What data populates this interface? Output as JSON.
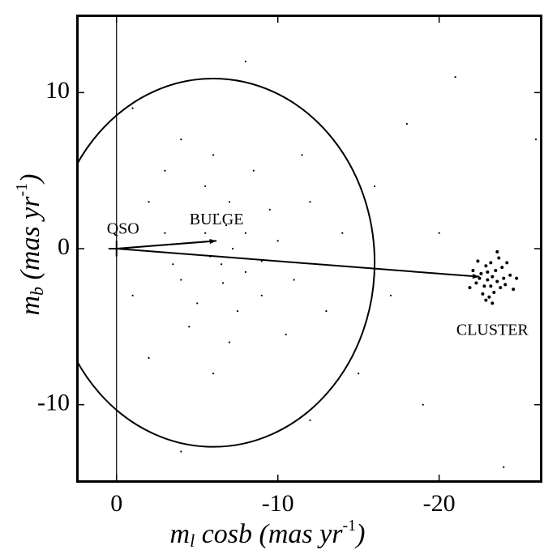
{
  "chart_data": {
    "type": "scatter",
    "xlabel": [
      "m",
      "l",
      " cosb (mas yr",
      "-1",
      ")"
    ],
    "ylabel": [
      "m",
      "b",
      " (mas yr",
      "-1",
      ")"
    ],
    "xlim": [
      2.5,
      -26.4
    ],
    "ylim": [
      -15,
      15
    ],
    "xticks": [
      0,
      -10,
      -20
    ],
    "yticks": [
      10,
      0,
      -10
    ],
    "vline": 0,
    "ellipse": {
      "center": [
        -6,
        -0.9
      ],
      "radius_x": 10,
      "radius_y": 11.8
    },
    "arrows": [
      {
        "from": [
          0,
          0
        ],
        "to": [
          -6.2,
          0.5
        ]
      },
      {
        "from": [
          0,
          0
        ],
        "to": [
          -22.5,
          -1.8
        ]
      }
    ],
    "error_bar": {
      "x": 0,
      "y": 0,
      "error": 0.5
    },
    "annotations": [
      {
        "text": "QSO",
        "x": -0.4,
        "y": 1.2
      },
      {
        "text": "BULGE",
        "x": -6.2,
        "y": 1.8
      },
      {
        "text": "CLUSTER",
        "x": -23.3,
        "y": -5.3
      }
    ],
    "series": [
      {
        "color": "#000000",
        "x": [
          -5,
          -7,
          -6.5,
          -8,
          -4,
          -9,
          -5.5,
          -7.5,
          -3,
          -10,
          -6,
          -8.5,
          -4.5,
          -11,
          -2,
          -7,
          -9.5,
          -5,
          -6.8,
          -3.5,
          -12,
          -8,
          -6,
          -13,
          -1,
          -10.5,
          -4,
          -7.2,
          -5.8,
          -6.3,
          -9,
          -14,
          -3,
          -2,
          -11.5,
          -15,
          -16,
          -1,
          -18,
          -19,
          -17,
          -12,
          -20,
          -8,
          -4,
          -26,
          -24,
          -21,
          -5.5,
          -6.6
        ],
        "y": [
          2,
          3,
          -1,
          1,
          -2,
          -3,
          4,
          -4,
          1,
          0.5,
          6,
          5,
          -5,
          -2,
          3,
          -6,
          2.5,
          -3.5,
          1.5,
          -1,
          3,
          -1.5,
          -8,
          -4,
          -3,
          -5.5,
          7,
          0,
          -0.5,
          2.2,
          -0.8,
          1,
          5,
          -7,
          6,
          -8,
          4,
          9,
          8,
          -10,
          -3,
          -11,
          1,
          12,
          -13,
          7,
          -14,
          11,
          1,
          -2.2
        ]
      },
      {
        "color": "#000000",
        "x": [
          -23.3,
          -23,
          -23.6,
          -22.8,
          -23.9,
          -22.5,
          -24.1,
          -23.2,
          -23.4,
          -22.9,
          -24.4,
          -22.3,
          -23.7,
          -23.1,
          -24.6,
          -22.1,
          -23.5,
          -23,
          -23.8,
          -22.7,
          -24.2,
          -22.4,
          -24.8,
          -21.9,
          -23.3,
          -23.6,
          -22.6,
          -24,
          -23.2,
          -22.9
        ],
        "y": [
          -1.8,
          -1.5,
          -2.1,
          -2.4,
          -1.2,
          -1.9,
          -2.3,
          -0.9,
          -2.8,
          -1.1,
          -1.7,
          -2.2,
          -0.6,
          -3.1,
          -2.6,
          -1.4,
          -1.4,
          -2,
          -2.5,
          -2.9,
          -0.9,
          -0.8,
          -1.9,
          -2.5,
          -3.5,
          -0.2,
          -1.6,
          -1.9,
          -2.4,
          -3.3
        ]
      }
    ]
  }
}
